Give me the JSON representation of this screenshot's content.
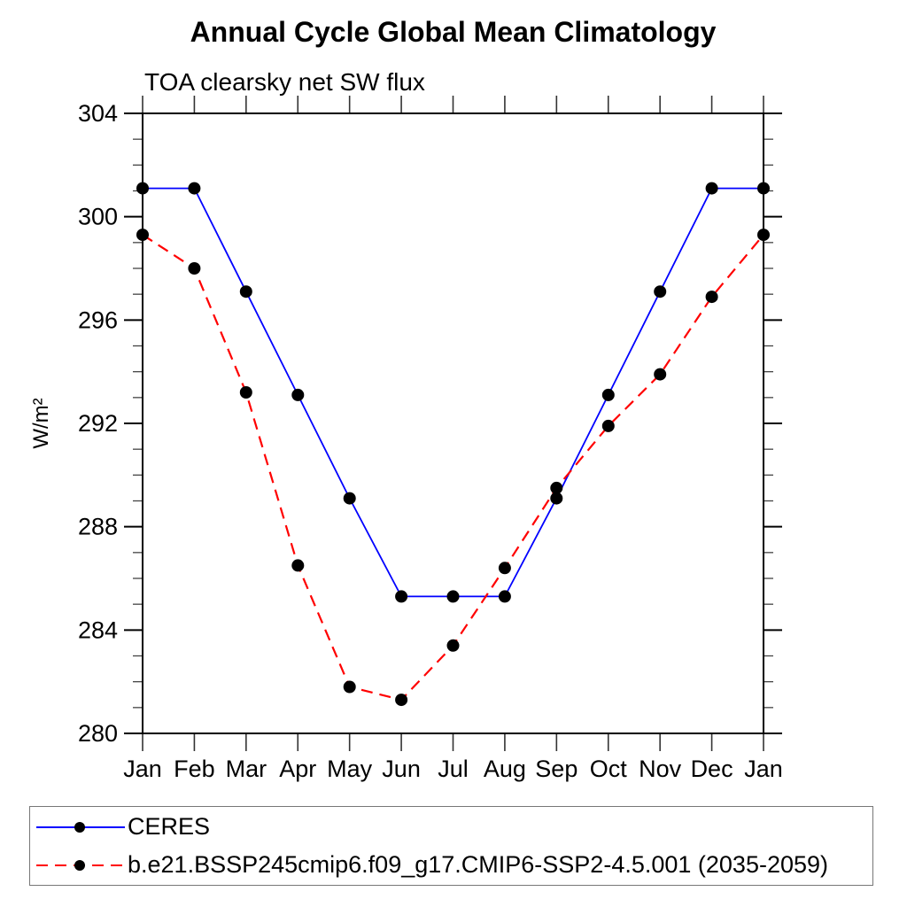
{
  "chart_data": {
    "type": "line",
    "title": "Annual Cycle Global Mean Climatology",
    "subtitle": "TOA clearsky net SW flux",
    "ylabel": "W/m²",
    "xlabel": "",
    "categories": [
      "Jan",
      "Feb",
      "Mar",
      "Apr",
      "May",
      "Jun",
      "Jul",
      "Aug",
      "Sep",
      "Oct",
      "Nov",
      "Dec",
      "Jan"
    ],
    "series": [
      {
        "name": "CERES",
        "color": "#0000ff",
        "line_style": "solid",
        "marker": "filled-circle",
        "marker_color": "#000000",
        "values": [
          301.1,
          301.1,
          297.1,
          293.1,
          289.1,
          285.3,
          285.3,
          285.3,
          289.1,
          293.1,
          297.1,
          301.1,
          301.1
        ]
      },
      {
        "name": "b.e21.BSSP245cmip6.f09_g17.CMIP6-SSP2-4.5.001 (2035-2059)",
        "color": "#ff0000",
        "line_style": "dashed",
        "marker": "filled-circle",
        "marker_color": "#000000",
        "values": [
          299.3,
          298.0,
          293.2,
          286.5,
          281.8,
          281.3,
          283.4,
          286.4,
          289.5,
          291.9,
          293.9,
          296.9,
          299.3
        ]
      }
    ],
    "y_axis": {
      "min": 280,
      "max": 304,
      "major_step": 4,
      "minor_step": 1,
      "major_tick_labels": [
        "280",
        "284",
        "288",
        "292",
        "296",
        "300",
        "304"
      ]
    },
    "x_axis": {
      "tick_labels": [
        "Jan",
        "Feb",
        "Mar",
        "Apr",
        "May",
        "Jun",
        "Jul",
        "Aug",
        "Sep",
        "Oct",
        "Nov",
        "Dec",
        "Jan"
      ]
    },
    "grid": false,
    "legend_position": "bottom-left-box"
  }
}
